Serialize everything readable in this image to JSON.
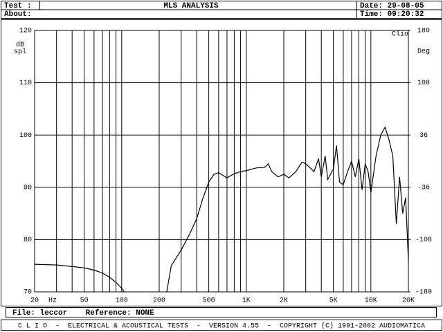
{
  "chart_data": {
    "type": "line",
    "title": "MLS ANALYSIS",
    "test_label": "Test :",
    "about_label": "About:",
    "date": "Date: 29-08-05",
    "time": "Time: 09:20:32",
    "brand": "Clio",
    "xlabel": "Hz",
    "ylabel": "dB spl",
    "y2label": "Deg",
    "file_info": "File: leccor    Reference: NONE",
    "footer": "C L I O  -  ELECTRICAL & ACOUSTICAL TESTS  -  VERSION 4.55  -  COPYRIGHT (C) 1991-2002 AUDIOMATICA",
    "xscale": "log",
    "grid": true,
    "xlim": [
      20,
      20000
    ],
    "xticks": [
      20,
      50,
      100,
      200,
      500,
      {
        "value": 1000,
        "label": "1K"
      },
      {
        "value": 2000,
        "label": "2K"
      },
      {
        "value": 5000,
        "label": "5K"
      },
      {
        "value": 10000,
        "label": "10K"
      },
      {
        "value": 20000,
        "label": "20K"
      }
    ],
    "xminor": [
      30,
      40,
      60,
      70,
      80,
      90,
      300,
      400,
      600,
      700,
      800,
      900,
      3000,
      4000,
      6000,
      7000,
      8000,
      9000
    ],
    "ylim": [
      70,
      120
    ],
    "yticks": [
      70,
      80,
      90,
      100,
      110,
      120
    ],
    "y2lim": [
      -180,
      180
    ],
    "y2ticks": [
      -180,
      -108,
      -36,
      36,
      108,
      180
    ],
    "series": [
      {
        "name": "Magnitude",
        "color": "#000000",
        "x": [
          230,
          250,
          300,
          350,
          400,
          450,
          500,
          550,
          600,
          700,
          800,
          900,
          1000,
          1200,
          1400,
          1500,
          1600,
          1800,
          2000,
          2200,
          2500,
          2800,
          3000,
          3500,
          3800,
          4000,
          4300,
          4500,
          5000,
          5300,
          5600,
          6000,
          6500,
          7000,
          7500,
          8000,
          8500,
          9000,
          9500,
          10000,
          11000,
          12000,
          13000,
          14000,
          15000,
          16000,
          17000,
          18000,
          19000,
          19500,
          20000
        ],
        "values": [
          70,
          75,
          78,
          81,
          84,
          88,
          91,
          92.5,
          92.8,
          91.8,
          92.6,
          93,
          93.2,
          93.7,
          93.8,
          94.5,
          93,
          92,
          92.5,
          91.8,
          93,
          94.8,
          94.5,
          93,
          95.5,
          92,
          96,
          91.5,
          93.5,
          98,
          91,
          90.5,
          93,
          95,
          92,
          95.5,
          89.5,
          94.5,
          93,
          89,
          96,
          100,
          101.5,
          99,
          96,
          83,
          92,
          85,
          88,
          82,
          76
        ]
      },
      {
        "name": "Phase",
        "color": "#000000",
        "axis": "y2",
        "x": [
          20,
          30,
          40,
          50,
          60,
          70,
          80,
          90,
          100,
          105
        ],
        "values": [
          -142,
          -143,
          -145,
          -147,
          -150,
          -154,
          -160,
          -167,
          -175,
          -180
        ]
      }
    ]
  }
}
